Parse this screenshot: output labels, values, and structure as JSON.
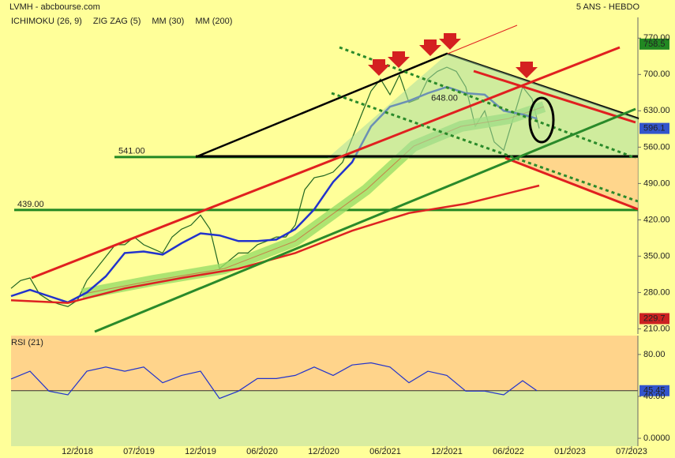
{
  "chart_data": [
    {
      "type": "line",
      "title": "LVMH - abcbourse.com",
      "subtitle": "5 ANS - HEBDO",
      "xlim": [
        0,
        265
      ],
      "ylim": [
        200,
        810
      ],
      "yticks": [
        {
          "value": 210,
          "label": "210.00"
        },
        {
          "value": 280,
          "label": "280.00"
        },
        {
          "value": 350,
          "label": "350.00"
        },
        {
          "value": 420,
          "label": "420.00"
        },
        {
          "value": 490,
          "label": "490.00"
        },
        {
          "value": 560,
          "label": "560.00"
        },
        {
          "value": 630,
          "label": "630.00"
        },
        {
          "value": 700,
          "label": "700.00"
        },
        {
          "value": 770,
          "label": "770.00"
        }
      ],
      "series": [
        {
          "color": "#226622",
          "x": [
            0,
            4,
            8,
            12,
            16,
            20,
            24,
            28,
            32,
            36,
            40,
            44,
            48,
            52,
            56,
            60,
            64,
            68,
            72,
            76,
            80,
            84,
            88,
            92,
            96,
            100,
            104,
            108,
            112,
            116,
            120,
            124,
            128,
            132,
            136,
            140,
            144,
            148,
            152,
            156,
            160,
            164,
            168,
            172,
            176,
            180,
            184,
            188,
            192,
            196,
            200,
            204,
            208,
            212,
            216,
            220,
            223
          ],
          "values": [
            288,
            303,
            308,
            277,
            265,
            258,
            253,
            265,
            303,
            326,
            349,
            372,
            372,
            387,
            372,
            364,
            356,
            387,
            402,
            410,
            429,
            402,
            326,
            341,
            356,
            356,
            372,
            379,
            387,
            387,
            410,
            478,
            501,
            505,
            512,
            531,
            577,
            623,
            668,
            691,
            661,
            699,
            646,
            653,
            691,
            706,
            714,
            706,
            676,
            600,
            630,
            570,
            554,
            615,
            676,
            653,
            596.1
          ]
        },
        {
          "name": "ICHIMOKU (26, 9)",
          "color": "#dd2222",
          "fill": "#99dd66",
          "x": [
            30,
            60,
            90,
            120,
            150,
            170,
            190,
            210,
            225
          ],
          "values": [
            277,
            303,
            326,
            379,
            478,
            562,
            600,
            615,
            638
          ]
        },
        {
          "name": "ZIG ZAG (5)",
          "color": "#000000",
          "x": [
            78,
            184,
            265
          ],
          "values": [
            541,
            740,
            615
          ]
        },
        {
          "name": "MM (30)",
          "color": "#2233cc",
          "x": [
            0,
            8,
            16,
            24,
            32,
            40,
            48,
            56,
            64,
            72,
            80,
            88,
            96,
            104,
            112,
            120,
            128,
            136,
            144,
            152,
            160,
            168,
            176,
            184,
            192,
            200,
            208,
            216,
            222
          ],
          "values": [
            273,
            285,
            273,
            261,
            280,
            311,
            356,
            359,
            353,
            375,
            394,
            390,
            379,
            379,
            382,
            402,
            440,
            493,
            531,
            600,
            638,
            649,
            664,
            676,
            664,
            661,
            630,
            623,
            615
          ]
        },
        {
          "name": "MM (200)",
          "color": "#dd2222",
          "x": [
            0,
            24,
            48,
            72,
            96,
            120,
            144,
            168,
            192,
            216,
            223
          ],
          "values": [
            265,
            260,
            288,
            308,
            326,
            356,
            399,
            433,
            451,
            478,
            486
          ]
        }
      ],
      "levels": [
        {
          "value": 541,
          "label": "541.00",
          "color": "#228822"
        },
        {
          "value": 439,
          "label": "439.00",
          "color": "#228822"
        }
      ],
      "annotations": [
        {
          "x": 183,
          "value": 648,
          "label": "648.00"
        }
      ],
      "markers": [
        {
          "value": 758.5,
          "color": "#228822"
        },
        {
          "value": 596.1,
          "color": "#3355cc"
        },
        {
          "value": 229.7,
          "color": "#cc2222"
        }
      ]
    },
    {
      "type": "line",
      "title": "RSI (21)",
      "xlim": [
        0,
        265
      ],
      "ylim": [
        -7.5,
        98
      ],
      "xticks": [
        {
          "value": 28,
          "label": "12/2018"
        },
        {
          "value": 54,
          "label": "07/2019"
        },
        {
          "value": 80,
          "label": "12/2019"
        },
        {
          "value": 106,
          "label": "06/2020"
        },
        {
          "value": 132,
          "label": "12/2020"
        },
        {
          "value": 158,
          "label": "06/2021"
        },
        {
          "value": 184,
          "label": "12/2021"
        },
        {
          "value": 210,
          "label": "06/2022"
        },
        {
          "value": 236,
          "label": "01/2023"
        },
        {
          "value": 262,
          "label": "07/2023"
        }
      ],
      "yticks": [
        {
          "value": 0,
          "label": "0.0000"
        },
        {
          "value": 40,
          "label": "40.00"
        },
        {
          "value": 80,
          "label": "80.00"
        }
      ],
      "series": [
        {
          "color": "#2233cc",
          "x": [
            0,
            8,
            16,
            24,
            32,
            40,
            48,
            56,
            64,
            72,
            80,
            88,
            96,
            104,
            112,
            120,
            128,
            136,
            144,
            152,
            160,
            168,
            176,
            184,
            192,
            200,
            208,
            216,
            222
          ],
          "values": [
            56.6,
            64,
            45,
            41.5,
            64,
            68,
            64,
            68,
            53,
            60,
            64,
            38,
            45,
            57,
            57,
            60,
            68,
            60,
            70,
            72,
            68,
            53,
            64,
            60,
            45,
            45,
            41.5,
            55,
            45.45
          ]
        }
      ],
      "markers": [
        {
          "value": 45.45,
          "color": "#3355cc"
        }
      ]
    }
  ]
}
